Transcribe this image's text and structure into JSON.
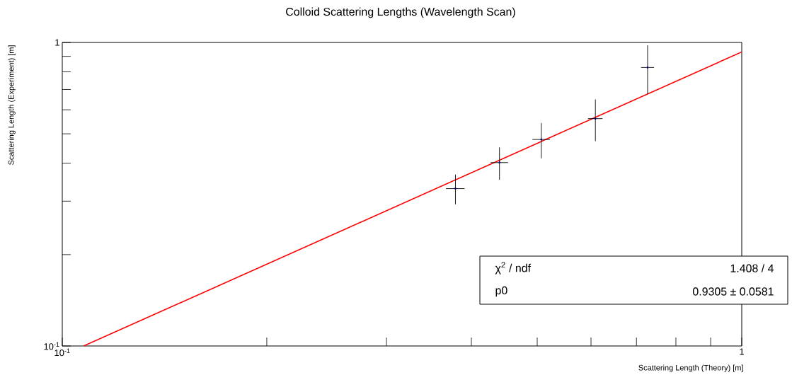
{
  "chart_data": {
    "type": "scatter",
    "title": "Colloid Scattering Lengths (Wavelength Scan)",
    "xlabel": "Scattering Length (Theory) [m]",
    "ylabel": "Scattering Length (Experiment) [m]",
    "log": "xy",
    "grid": false,
    "marker": "circle",
    "xlim": [
      0.1,
      1
    ],
    "ylim": [
      0.1,
      1
    ],
    "xticks": [
      {
        "value": 0.1,
        "label": "10$^{-1}$"
      },
      {
        "value": 0.2,
        "label": null
      },
      {
        "value": 0.3,
        "label": null
      },
      {
        "value": 0.4,
        "label": null
      },
      {
        "value": 0.5,
        "label": null
      },
      {
        "value": 0.6,
        "label": null
      },
      {
        "value": 0.7,
        "label": null
      },
      {
        "value": 0.8,
        "label": null
      },
      {
        "value": 0.9,
        "label": null
      },
      1
    ],
    "yticks": [
      {
        "value": 0.1,
        "label": "10$^{-1}$"
      },
      {
        "value": 0.2,
        "label": null
      },
      {
        "value": 0.3,
        "label": null
      },
      {
        "value": 0.4,
        "label": null
      },
      {
        "value": 0.5,
        "label": null
      },
      {
        "value": 0.6,
        "label": null
      },
      {
        "value": 0.7,
        "label": null
      },
      {
        "value": 0.8,
        "label": null
      },
      {
        "value": 0.9,
        "label": null
      },
      1
    ],
    "annotations": [
      "χ$^{2}$ / ndf",
      "1.408 / 4",
      "p0",
      "0.9305 ± 0.0581"
    ],
    "series": [
      {
        "color": "#000080",
        "x": [
          0.379,
          0.44,
          0.507,
          0.609,
          0.727
        ],
        "values": [
          0.33,
          0.402,
          0.479,
          0.561,
          0.827
        ],
        "errors": [
          0.037,
          0.049,
          0.064,
          0.088,
          0.152
        ],
        "xerrors": [
          0.012,
          0.013,
          0.015,
          0.015,
          0.016
        ]
      },
      {
        "type": "line",
        "color": "#ff0000",
        "marker": "none",
        "x": [
          0.1075,
          1
        ],
        "values": [
          0.1,
          0.9305
        ]
      }
    ]
  }
}
